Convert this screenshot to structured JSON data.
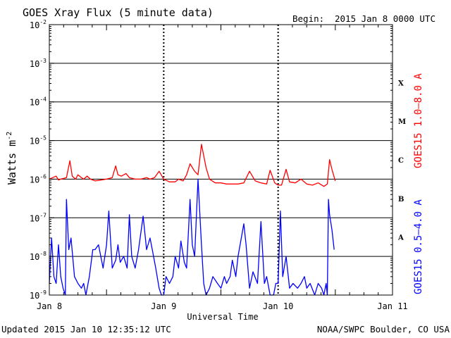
{
  "chart_data": {
    "type": "line",
    "title": "GOES Xray Flux (5 minute data)",
    "begin_label": "Begin:",
    "begin_value": "2015 Jan 8 0000 UTC",
    "xlabel": "Universal Time",
    "ylabel_base": "Watts m",
    "ylabel_exp": "-2",
    "yscale": "log",
    "ylim": [
      1e-09,
      0.01
    ],
    "xlim": [
      0,
      3
    ],
    "x_ticks": [
      {
        "x": 0,
        "label": "Jan 8"
      },
      {
        "x": 1,
        "label": "Jan 9"
      },
      {
        "x": 2,
        "label": "Jan 10"
      },
      {
        "x": 3,
        "label": "Jan 11"
      }
    ],
    "y_ticks": [
      {
        "exp": -9,
        "base": "10",
        "sup": "-9"
      },
      {
        "exp": -8,
        "base": "10",
        "sup": "-8"
      },
      {
        "exp": -7,
        "base": "10",
        "sup": "-7"
      },
      {
        "exp": -6,
        "base": "10",
        "sup": "-6"
      },
      {
        "exp": -5,
        "base": "10",
        "sup": "-5"
      },
      {
        "exp": -4,
        "base": "10",
        "sup": "-4"
      },
      {
        "exp": -3,
        "base": "10",
        "sup": "-3"
      },
      {
        "exp": -2,
        "base": "10",
        "sup": "-2"
      }
    ],
    "flare_classes": [
      {
        "label": "A",
        "exp": -7.5
      },
      {
        "label": "B",
        "exp": -6.5
      },
      {
        "label": "C",
        "exp": -5.5
      },
      {
        "label": "M",
        "exp": -4.5
      },
      {
        "label": "X",
        "exp": -3.5
      }
    ],
    "series": [
      {
        "name": "GOES15 1.0–8.0 A",
        "color": "#ff0000",
        "x": [
          0,
          0.03,
          0.06,
          0.08,
          0.1,
          0.15,
          0.18,
          0.2,
          0.23,
          0.25,
          0.28,
          0.3,
          0.33,
          0.36,
          0.4,
          0.45,
          0.5,
          0.55,
          0.58,
          0.6,
          0.63,
          0.67,
          0.7,
          0.75,
          0.8,
          0.85,
          0.88,
          0.92,
          0.96,
          1.0,
          1.05,
          1.1,
          1.13,
          1.17,
          1.2,
          1.23,
          1.27,
          1.3,
          1.33,
          1.37,
          1.4,
          1.45,
          1.5,
          1.55,
          1.6,
          1.65,
          1.7,
          1.75,
          1.8,
          1.85,
          1.9,
          1.93,
          1.97,
          2.0,
          2.03,
          2.07,
          2.1,
          2.15,
          2.2,
          2.25,
          2.3,
          2.35,
          2.4,
          2.43,
          2.45,
          2.47,
          2.5
        ],
        "y": [
          1e-06,
          1.1e-06,
          1.2e-06,
          9.5e-07,
          1e-06,
          1.1e-06,
          3e-06,
          1.2e-06,
          1e-06,
          1.3e-06,
          1.1e-06,
          1e-06,
          1.2e-06,
          1e-06,
          9e-07,
          9.5e-07,
          1e-06,
          1.1e-06,
          2.2e-06,
          1.3e-06,
          1.2e-06,
          1.4e-06,
          1.1e-06,
          1e-06,
          1e-06,
          1.1e-06,
          1e-06,
          1.1e-06,
          1.6e-06,
          1e-06,
          8.5e-07,
          8.5e-07,
          1e-06,
          9e-07,
          1.3e-06,
          2.5e-06,
          1.6e-06,
          1.3e-06,
          8e-06,
          2e-06,
          1e-06,
          8e-07,
          8e-07,
          7.5e-07,
          7.5e-07,
          7.5e-07,
          8e-07,
          1.6e-06,
          9e-07,
          8e-07,
          7.5e-07,
          1.7e-06,
          8e-07,
          7e-07,
          7e-07,
          1.8e-06,
          8.5e-07,
          8e-07,
          1e-06,
          7.5e-07,
          7e-07,
          8e-07,
          6.5e-07,
          7.5e-07,
          3.2e-06,
          1.8e-06,
          9e-07
        ]
      },
      {
        "name": "GOES15 0.5–4.0 A",
        "color": "#0000ff",
        "x": [
          0,
          0.02,
          0.04,
          0.06,
          0.08,
          0.1,
          0.12,
          0.14,
          0.15,
          0.17,
          0.19,
          0.22,
          0.25,
          0.28,
          0.3,
          0.32,
          0.35,
          0.38,
          0.4,
          0.43,
          0.47,
          0.5,
          0.52,
          0.55,
          0.58,
          0.6,
          0.62,
          0.65,
          0.68,
          0.7,
          0.72,
          0.75,
          0.78,
          0.82,
          0.85,
          0.88,
          0.9,
          0.93,
          0.96,
          0.98,
          1.0,
          1.02,
          1.05,
          1.08,
          1.1,
          1.13,
          1.15,
          1.18,
          1.2,
          1.23,
          1.25,
          1.27,
          1.3,
          1.33,
          1.35,
          1.37,
          1.4,
          1.43,
          1.47,
          1.5,
          1.53,
          1.55,
          1.58,
          1.6,
          1.63,
          1.65,
          1.7,
          1.72,
          1.75,
          1.78,
          1.82,
          1.85,
          1.88,
          1.9,
          1.93,
          1.96,
          1.98,
          2.0,
          2.02,
          2.04,
          2.07,
          2.1,
          2.13,
          2.17,
          2.2,
          2.23,
          2.25,
          2.28,
          2.32,
          2.35,
          2.38,
          2.4,
          2.42,
          2.43,
          2.44,
          2.45,
          2.47,
          2.49
        ],
        "y": [
          2e-09,
          3e-08,
          3e-09,
          2e-09,
          2e-08,
          3e-09,
          1.5e-09,
          1e-09,
          3e-07,
          1.5e-08,
          3e-08,
          3e-09,
          2e-09,
          1.5e-09,
          2e-09,
          1e-09,
          3e-09,
          1.5e-08,
          1.5e-08,
          2e-08,
          5e-09,
          2e-08,
          1.5e-07,
          5e-09,
          8e-09,
          2e-08,
          7e-09,
          1e-08,
          5e-09,
          1.2e-07,
          1e-08,
          5e-09,
          1.5e-08,
          1.1e-07,
          1.5e-08,
          3e-08,
          1.5e-08,
          5e-09,
          1.5e-09,
          1e-09,
          1e-09,
          3e-09,
          2e-09,
          3e-09,
          1e-08,
          5e-09,
          2.5e-08,
          7e-09,
          5e-09,
          3e-07,
          2e-08,
          1e-08,
          1e-06,
          2e-08,
          2e-09,
          1e-09,
          1.5e-09,
          3e-09,
          2e-09,
          1.5e-09,
          3e-09,
          2e-09,
          3e-09,
          8e-09,
          3e-09,
          1e-08,
          7e-08,
          2e-08,
          1.5e-09,
          4e-09,
          2e-09,
          8e-08,
          2e-09,
          3e-09,
          1e-09,
          1e-09,
          2e-09,
          2e-09,
          1.5e-07,
          3e-09,
          1e-08,
          1.5e-09,
          2e-09,
          1.5e-09,
          2e-09,
          3e-09,
          1.5e-09,
          2e-09,
          1e-09,
          2e-09,
          1.5e-09,
          1e-09,
          2e-09,
          1e-09,
          3e-07,
          1.2e-07,
          5e-08,
          1.5e-08
        ]
      }
    ]
  },
  "footer": {
    "updated": "Updated 2015 Jan 10 12:35:12 UTC",
    "source": "NOAA/SWPC Boulder, CO USA"
  }
}
